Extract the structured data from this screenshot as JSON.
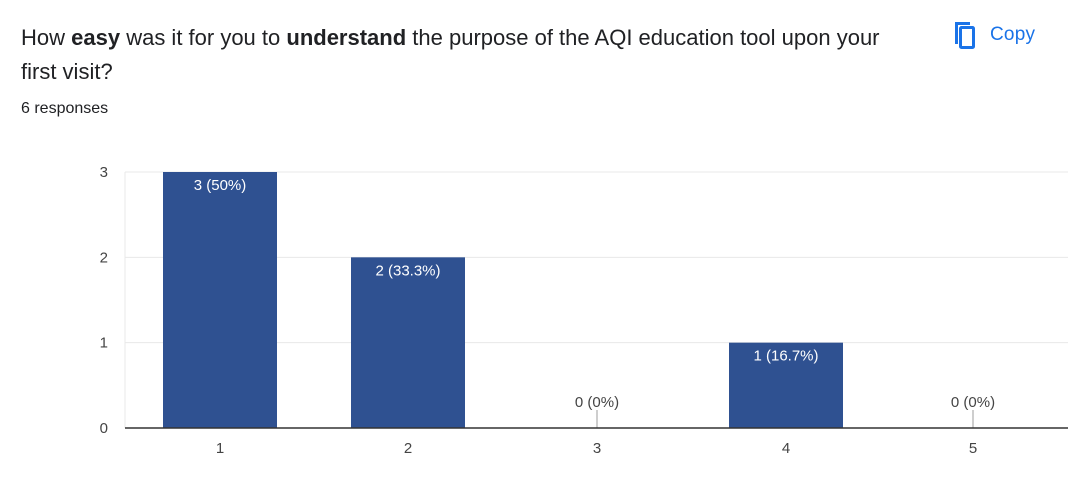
{
  "question": {
    "prefix": "How ",
    "bold1": "easy",
    "middle": " was it for you to ",
    "bold2": "understand",
    "suffix": " the purpose of the AQI education tool upon your first visit?"
  },
  "responses_label": "6 responses",
  "copy_button": {
    "label": "Copy",
    "icon": "copy-icon"
  },
  "colors": {
    "bar": "#2f5191",
    "accent": "#1a73e8",
    "text": "#202124",
    "grid": "#e8e8e8",
    "axis": "#333333"
  },
  "chart_data": {
    "type": "bar",
    "categories": [
      "1",
      "2",
      "3",
      "4",
      "5"
    ],
    "values": [
      3,
      2,
      0,
      1,
      0
    ],
    "data_labels": [
      "3 (50%)",
      "2 (33.3%)",
      "0 (0%)",
      "1 (16.7%)",
      "0 (0%)"
    ],
    "y_ticks": [
      0,
      1,
      2,
      3
    ],
    "ylim": [
      0,
      3
    ],
    "grid": true,
    "legend": "none",
    "title": "",
    "xlabel": "",
    "ylabel": ""
  }
}
